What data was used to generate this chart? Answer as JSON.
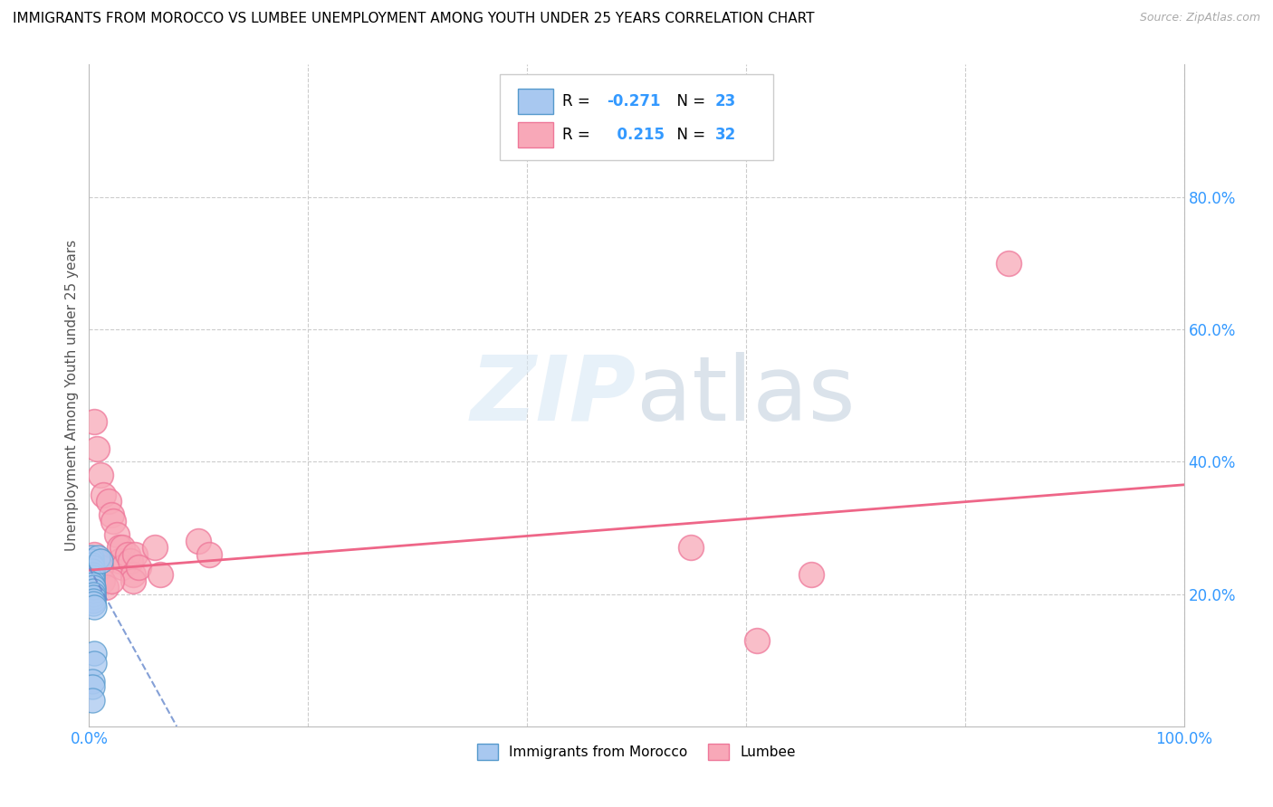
{
  "title": "IMMIGRANTS FROM MOROCCO VS LUMBEE UNEMPLOYMENT AMONG YOUTH UNDER 25 YEARS CORRELATION CHART",
  "source": "Source: ZipAtlas.com",
  "ylabel": "Unemployment Among Youth under 25 years",
  "xlim": [
    0.0,
    1.0
  ],
  "ylim": [
    0.0,
    1.0
  ],
  "xtick_values": [
    0.0,
    0.2,
    0.4,
    0.6,
    0.8,
    1.0
  ],
  "xtick_labels": [
    "0.0%",
    "",
    "",
    "",
    "",
    "100.0%"
  ],
  "right_ytick_values": [
    0.2,
    0.4,
    0.6,
    0.8
  ],
  "right_ytick_labels": [
    "20.0%",
    "40.0%",
    "60.0%",
    "80.0%"
  ],
  "watermark_zip": "ZIP",
  "watermark_atlas": "atlas",
  "legend_label1": "Immigrants from Morocco",
  "legend_label2": "Lumbee",
  "r1": -0.271,
  "n1": 23,
  "r2": 0.215,
  "n2": 32,
  "color_blue_fill": "#a8c8f0",
  "color_blue_edge": "#5599cc",
  "color_pink_fill": "#f8a8b8",
  "color_pink_edge": "#ee7799",
  "color_blue_line": "#6688cc",
  "color_pink_line": "#ee6688",
  "scatter_blue": [
    [
      0.002,
      0.255
    ],
    [
      0.002,
      0.25
    ],
    [
      0.002,
      0.245
    ],
    [
      0.003,
      0.24
    ],
    [
      0.003,
      0.235
    ],
    [
      0.003,
      0.23
    ],
    [
      0.003,
      0.225
    ],
    [
      0.003,
      0.22
    ],
    [
      0.003,
      0.215
    ],
    [
      0.004,
      0.21
    ],
    [
      0.004,
      0.205
    ],
    [
      0.004,
      0.2
    ],
    [
      0.004,
      0.195
    ],
    [
      0.004,
      0.19
    ],
    [
      0.004,
      0.185
    ],
    [
      0.005,
      0.18
    ],
    [
      0.005,
      0.11
    ],
    [
      0.005,
      0.095
    ],
    [
      0.008,
      0.255
    ],
    [
      0.01,
      0.25
    ],
    [
      0.003,
      0.068
    ],
    [
      0.003,
      0.06
    ],
    [
      0.003,
      0.04
    ]
  ],
  "scatter_pink": [
    [
      0.005,
      0.46
    ],
    [
      0.007,
      0.42
    ],
    [
      0.01,
      0.38
    ],
    [
      0.013,
      0.35
    ],
    [
      0.018,
      0.34
    ],
    [
      0.02,
      0.32
    ],
    [
      0.022,
      0.31
    ],
    [
      0.025,
      0.29
    ],
    [
      0.028,
      0.27
    ],
    [
      0.028,
      0.25
    ],
    [
      0.03,
      0.27
    ],
    [
      0.03,
      0.24
    ],
    [
      0.035,
      0.26
    ],
    [
      0.038,
      0.25
    ],
    [
      0.04,
      0.23
    ],
    [
      0.04,
      0.22
    ],
    [
      0.042,
      0.26
    ],
    [
      0.045,
      0.24
    ],
    [
      0.005,
      0.26
    ],
    [
      0.007,
      0.25
    ],
    [
      0.01,
      0.24
    ],
    [
      0.012,
      0.22
    ],
    [
      0.015,
      0.21
    ],
    [
      0.02,
      0.22
    ],
    [
      0.06,
      0.27
    ],
    [
      0.065,
      0.23
    ],
    [
      0.1,
      0.28
    ],
    [
      0.11,
      0.26
    ],
    [
      0.55,
      0.27
    ],
    [
      0.61,
      0.13
    ],
    [
      0.66,
      0.23
    ],
    [
      0.84,
      0.7
    ]
  ],
  "pink_line_x": [
    0.0,
    1.0
  ],
  "pink_line_y": [
    0.236,
    0.365
  ],
  "blue_line_x": [
    0.0,
    0.08
  ],
  "blue_line_y": [
    0.24,
    0.0
  ]
}
